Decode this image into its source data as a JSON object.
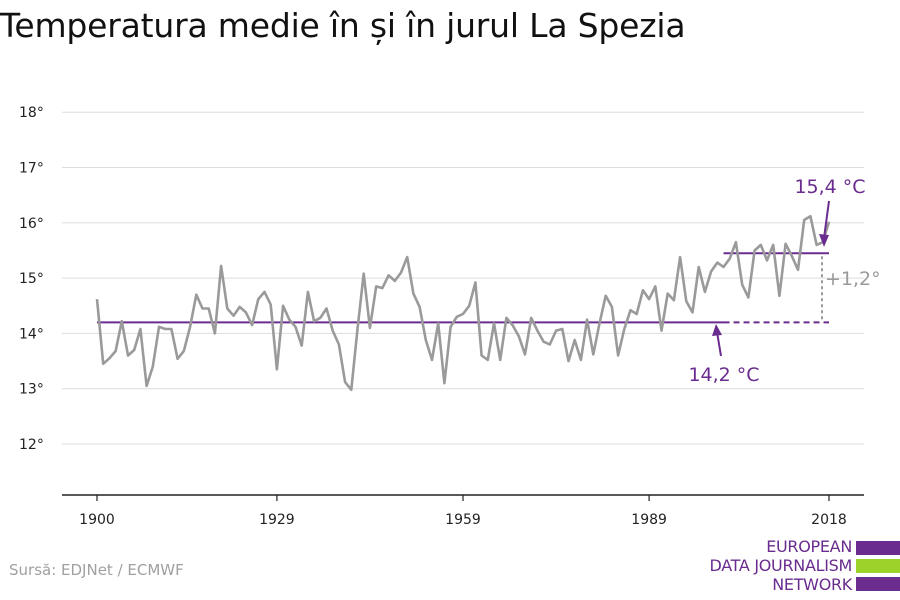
{
  "title": "Temperatura medie în și în jurul La Spezia",
  "source": "Sursă: EDJNet / ECMWF",
  "logo": {
    "lines": [
      "EUROPEAN",
      "DATA JOURNALISM",
      "NETWORK"
    ],
    "colors": [
      "#6a2c8e",
      "#9bd32a",
      "#6a2c8e"
    ]
  },
  "colors": {
    "series": "#9a9a9a",
    "average": "#6a2c8e",
    "grid": "#dddddd",
    "axis": "#222222",
    "delta": "#9a9a9a"
  },
  "chart_data": {
    "type": "line",
    "title": "Temperatura medie în și în jurul La Spezia",
    "xlabel": "",
    "ylabel": "",
    "xlim": [
      1900,
      2018
    ],
    "ylim": [
      11,
      19
    ],
    "x_ticks": [
      1900,
      1929,
      1959,
      1989,
      2018
    ],
    "y_ticks": [
      12,
      13,
      14,
      15,
      16,
      17,
      18
    ],
    "y_tick_suffix": "°",
    "grid": true,
    "series": [
      {
        "x": [
          1900,
          1901,
          1902,
          1903,
          1904,
          1905,
          1906,
          1907,
          1908,
          1909,
          1910,
          1911,
          1912,
          1913,
          1914,
          1915,
          1916,
          1917,
          1918,
          1919,
          1920,
          1921,
          1922,
          1923,
          1924,
          1925,
          1926,
          1927,
          1928,
          1929,
          1930,
          1931,
          1932,
          1933,
          1934,
          1935,
          1936,
          1937,
          1938,
          1939,
          1940,
          1941,
          1942,
          1943,
          1944,
          1945,
          1946,
          1947,
          1948,
          1949,
          1950,
          1951,
          1952,
          1953,
          1954,
          1955,
          1956,
          1957,
          1958,
          1959,
          1960,
          1961,
          1962,
          1963,
          1964,
          1965,
          1966,
          1967,
          1968,
          1969,
          1970,
          1971,
          1972,
          1973,
          1974,
          1975,
          1976,
          1977,
          1978,
          1979,
          1980,
          1981,
          1982,
          1983,
          1984,
          1985,
          1986,
          1987,
          1988,
          1989,
          1990,
          1991,
          1992,
          1993,
          1994,
          1995,
          1996,
          1997,
          1998,
          1999,
          2000,
          2001,
          2002,
          2003,
          2004,
          2005,
          2006,
          2007,
          2008,
          2009,
          2010,
          2011,
          2012,
          2013,
          2014,
          2015,
          2016,
          2017,
          2018
        ],
        "values": [
          14.62,
          13.45,
          13.55,
          13.68,
          14.22,
          13.6,
          13.7,
          14.08,
          13.05,
          13.4,
          14.12,
          14.08,
          14.08,
          13.54,
          13.68,
          14.12,
          14.7,
          14.45,
          14.45,
          14.0,
          15.22,
          14.45,
          14.32,
          14.48,
          14.38,
          14.15,
          14.62,
          14.75,
          14.52,
          13.35,
          14.5,
          14.25,
          14.12,
          13.78,
          14.75,
          14.22,
          14.28,
          14.45,
          14.05,
          13.8,
          13.12,
          12.98,
          14.08,
          15.08,
          14.1,
          14.85,
          14.82,
          15.05,
          14.95,
          15.1,
          15.38,
          14.72,
          14.48,
          13.88,
          13.52,
          14.18,
          13.1,
          14.12,
          14.3,
          14.35,
          14.5,
          14.92,
          13.6,
          13.52,
          14.18,
          13.52,
          14.28,
          14.15,
          13.95,
          13.62,
          14.28,
          14.05,
          13.85,
          13.8,
          14.05,
          14.08,
          13.5,
          13.88,
          13.52,
          14.25,
          13.62,
          14.18,
          14.68,
          14.48,
          13.6,
          14.08,
          14.42,
          14.35,
          14.78,
          14.62,
          14.85,
          14.05,
          14.72,
          14.6,
          15.38,
          14.58,
          14.38,
          15.2,
          14.75,
          15.12,
          15.28,
          15.2,
          15.35,
          15.65,
          14.88,
          14.65,
          15.5,
          15.6,
          15.32,
          15.6,
          14.68,
          15.62,
          15.4,
          15.15,
          16.05,
          16.12,
          15.6,
          15.65,
          16.02
        ]
      }
    ],
    "reference_lines": [
      {
        "label": "14,2 °C",
        "value": 14.2,
        "x_start": 1900,
        "x_end": 2001,
        "x_dashed_end": 2018
      },
      {
        "label": "15,4 °C",
        "value": 15.45,
        "x_start": 2001,
        "x_end": 2018
      }
    ],
    "delta_label": "+1,2°"
  }
}
